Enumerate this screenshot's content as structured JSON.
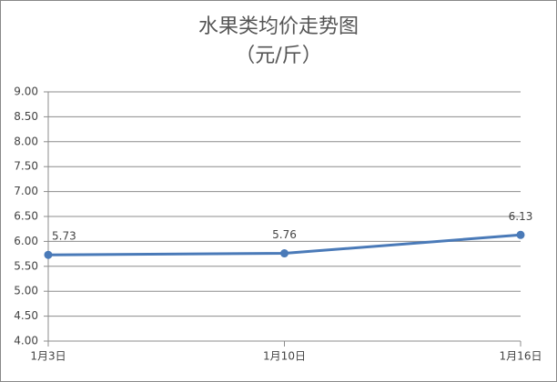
{
  "chart_data": {
    "type": "line",
    "title": "水果类均价走势图",
    "subtitle": "（元/斤）",
    "categories": [
      "1月3日",
      "1月10日",
      "1月16日"
    ],
    "values": [
      5.73,
      5.76,
      6.13
    ],
    "color": "#4a7ab8",
    "ylim": [
      4,
      9
    ],
    "yticks": [
      {
        "value": 4,
        "label": "4.00"
      },
      {
        "value": 4.5,
        "label": "4.50"
      },
      {
        "value": 5,
        "label": "5.00"
      },
      {
        "value": 5.5,
        "label": "5.50"
      },
      {
        "value": 6,
        "label": "6.00"
      },
      {
        "value": 6.5,
        "label": "6.50"
      },
      {
        "value": 7,
        "label": "7.00"
      },
      {
        "value": 7.5,
        "label": "7.50"
      },
      {
        "value": 8,
        "label": "8.00"
      },
      {
        "value": 8.5,
        "label": "8.50"
      },
      {
        "value": 9,
        "label": "9.00"
      }
    ],
    "grid": true
  }
}
